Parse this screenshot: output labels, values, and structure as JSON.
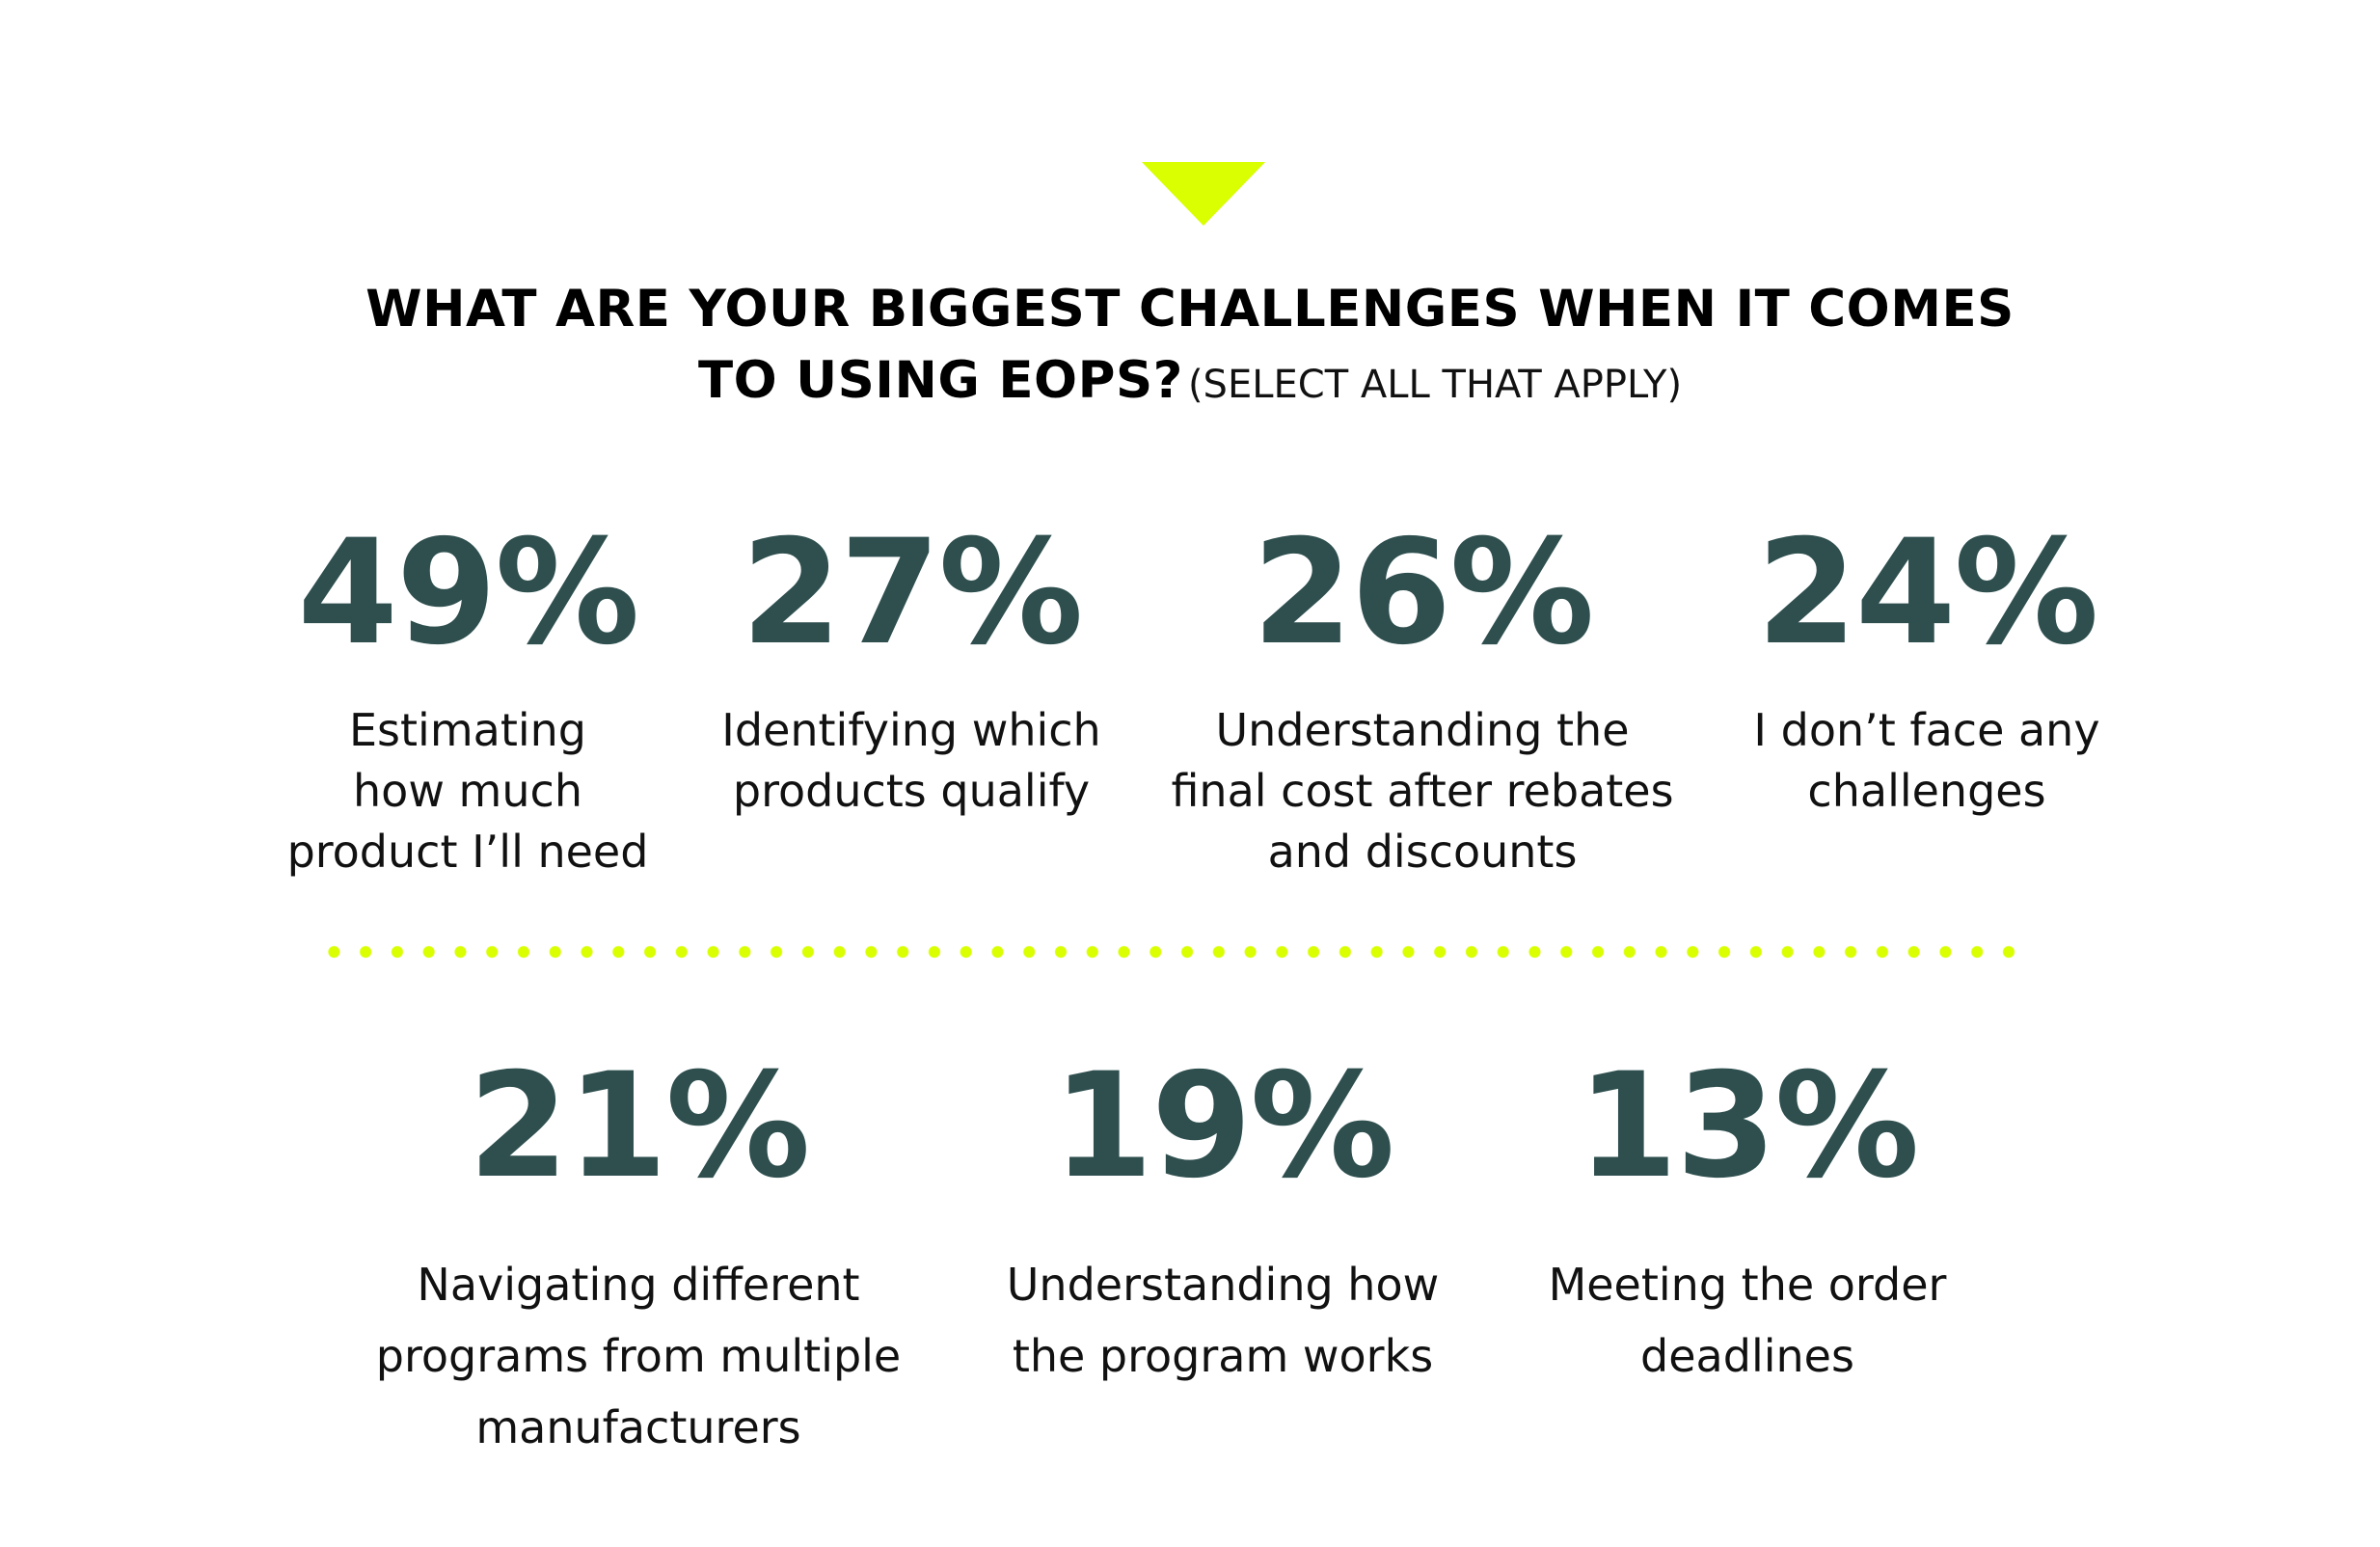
{
  "colors": {
    "accent": "#d9ff00",
    "stat": "#2f4f4f",
    "text": "#111111"
  },
  "question": {
    "line1": "WHAT ARE YOUR BIGGEST CHALLENGES WHEN IT COMES",
    "line2": "TO USING EOPS?",
    "note": "(SELECT ALL THAT APPLY)"
  },
  "stats": [
    {
      "percent": "49%",
      "label": "Estimating\nhow much\nproduct I’ll need"
    },
    {
      "percent": "27%",
      "label": "Identifying which\nproducts qualify"
    },
    {
      "percent": "26%",
      "label": "Understanding the\nfinal cost after rebates\nand discounts"
    },
    {
      "percent": "24%",
      "label": "I don’t face any\nchallenges"
    },
    {
      "percent": "21%",
      "label": "Navigating different\nprograms from multiple\nmanufacturers"
    },
    {
      "percent": "19%",
      "label": "Understanding how\nthe program works"
    },
    {
      "percent": "13%",
      "label": "Meeting the order\ndeadlines"
    }
  ]
}
